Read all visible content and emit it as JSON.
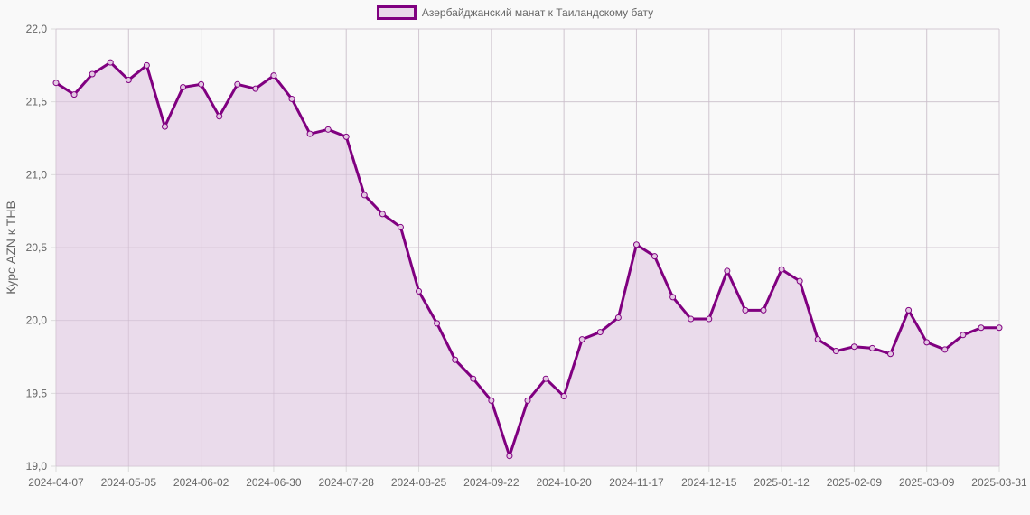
{
  "chart_data": {
    "type": "line",
    "fill": true,
    "title": "",
    "legend": {
      "position": "top",
      "entries": [
        "Азербайджанский манат к Таиландскому бату"
      ]
    },
    "xlabel": "",
    "ylabel": "Курс AZN к THB",
    "ylim": [
      19.0,
      22.0
    ],
    "y_ticks": [
      "19,0",
      "19,5",
      "20,0",
      "20,5",
      "21,0",
      "21,5",
      "22,0"
    ],
    "y_tick_values": [
      19.0,
      19.5,
      20.0,
      20.5,
      21.0,
      21.5,
      22.0
    ],
    "x_tick_labels": [
      "2024-04-07",
      "2024-05-05",
      "2024-06-02",
      "2024-06-30",
      "2024-07-28",
      "2024-08-25",
      "2024-09-22",
      "2024-10-20",
      "2024-11-17",
      "2024-12-15",
      "2025-01-12",
      "2025-02-09",
      "2025-03-09",
      "2025-03-31"
    ],
    "x_tick_indices": [
      0,
      4,
      8,
      12,
      16,
      20,
      24,
      28,
      32,
      36,
      40,
      44,
      48,
      52
    ],
    "grid": true,
    "colors": {
      "line": "#800080",
      "fill": "#e9d9ea",
      "point_fill": "#e3c8e3",
      "grid": "#dcdcdc",
      "background": "#f9f9f9"
    },
    "series": [
      {
        "name": "Азербайджанский манат к Таиландскому бату",
        "values": [
          21.63,
          21.55,
          21.69,
          21.77,
          21.65,
          21.75,
          21.33,
          21.6,
          21.62,
          21.4,
          21.62,
          21.59,
          21.68,
          21.52,
          21.28,
          21.31,
          21.26,
          20.86,
          20.73,
          20.64,
          20.2,
          19.98,
          19.73,
          19.6,
          19.45,
          19.07,
          19.45,
          19.6,
          19.48,
          19.87,
          19.92,
          20.02,
          20.52,
          20.44,
          20.16,
          20.01,
          20.01,
          20.34,
          20.07,
          20.07,
          20.35,
          20.27,
          19.87,
          19.79,
          19.82,
          19.81,
          19.77,
          20.07,
          19.85,
          19.8,
          19.9,
          19.95,
          19.95
        ]
      }
    ]
  }
}
